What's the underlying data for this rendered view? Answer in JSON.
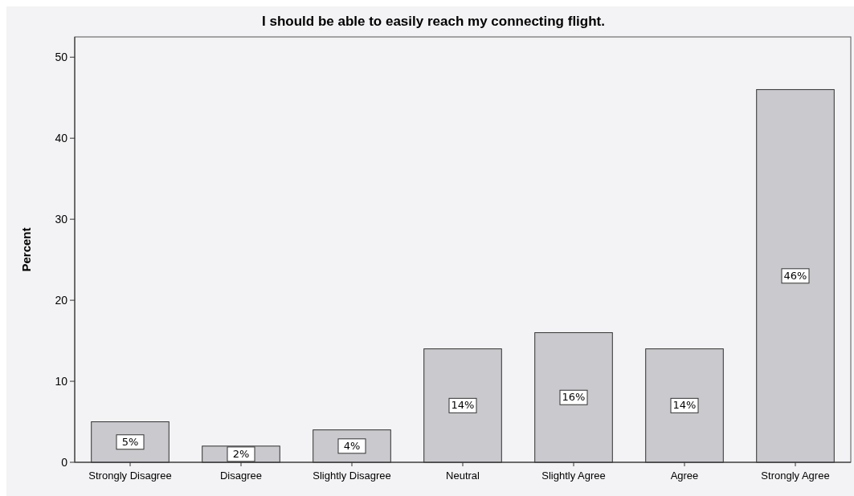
{
  "chart_data": {
    "type": "bar",
    "title": "I should be able to easily reach my connecting flight.",
    "ylabel": "Percent",
    "categories": [
      "Strongly Disagree",
      "Disagree",
      "Slightly Disagree",
      "Neutral",
      "Slightly Agree",
      "Agree",
      "Strongly Agree"
    ],
    "values": [
      5,
      2,
      4,
      14,
      16,
      14,
      46
    ],
    "value_labels": [
      "5%",
      "2%",
      "4%",
      "14%",
      "16%",
      "14%",
      "46%"
    ],
    "color": "#c9c9ce",
    "ylim": [
      0,
      52.5
    ],
    "yticks": [
      0,
      10,
      20,
      30,
      40,
      50
    ],
    "grid": false
  }
}
